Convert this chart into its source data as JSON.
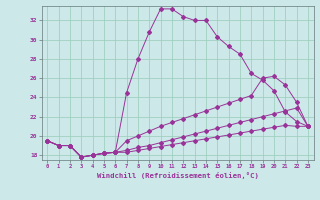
{
  "xlabel": "Windchill (Refroidissement éolien,°C)",
  "bg_color": "#cce8e8",
  "grid_color": "#99ccbb",
  "line_color": "#993399",
  "xmin": -0.5,
  "xmax": 23.5,
  "ymin": 17.5,
  "ymax": 33.5,
  "yticks": [
    18,
    20,
    22,
    24,
    26,
    28,
    30,
    32
  ],
  "xticks": [
    0,
    1,
    2,
    3,
    4,
    5,
    6,
    7,
    8,
    9,
    10,
    11,
    12,
    13,
    14,
    15,
    16,
    17,
    18,
    19,
    20,
    21,
    22,
    23
  ],
  "line1_y": [
    19.5,
    19.0,
    19.0,
    17.8,
    18.0,
    18.2,
    18.3,
    24.5,
    28.0,
    30.8,
    33.2,
    33.2,
    32.4,
    32.0,
    32.0,
    30.3,
    29.3,
    28.5,
    26.5,
    25.8,
    24.7,
    22.5,
    21.5,
    21.0
  ],
  "line2_y": [
    19.5,
    19.0,
    19.0,
    17.8,
    18.0,
    18.2,
    18.3,
    19.5,
    20.0,
    20.5,
    21.0,
    21.4,
    21.8,
    22.2,
    22.6,
    23.0,
    23.4,
    23.8,
    24.2,
    26.0,
    26.2,
    25.3,
    23.5,
    21.0
  ],
  "line3_y": [
    19.5,
    19.0,
    19.0,
    17.8,
    18.0,
    18.2,
    18.3,
    18.5,
    18.8,
    19.0,
    19.3,
    19.6,
    19.9,
    20.2,
    20.5,
    20.8,
    21.1,
    21.4,
    21.7,
    22.0,
    22.3,
    22.6,
    22.9,
    21.0
  ],
  "line4_y": [
    19.5,
    19.0,
    19.0,
    17.8,
    18.0,
    18.2,
    18.3,
    18.3,
    18.5,
    18.7,
    18.9,
    19.1,
    19.3,
    19.5,
    19.7,
    19.9,
    20.1,
    20.3,
    20.5,
    20.7,
    20.9,
    21.1,
    21.0,
    21.0
  ]
}
